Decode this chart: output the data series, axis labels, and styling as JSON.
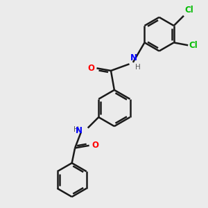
{
  "bg_color": "#ebebeb",
  "bond_color": "#1a1a1a",
  "bond_width": 1.8,
  "N_color": "#0000ff",
  "O_color": "#ff0000",
  "Cl_color": "#00bb00",
  "H_color": "#555555",
  "figsize": [
    3.0,
    3.0
  ],
  "dpi": 100,
  "xlim": [
    0,
    10
  ],
  "ylim": [
    0,
    10
  ]
}
